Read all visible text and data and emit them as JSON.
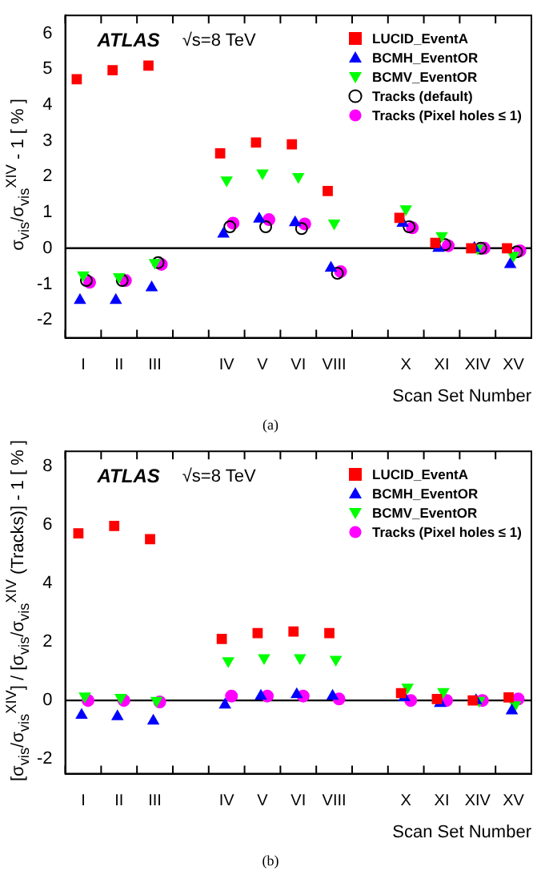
{
  "chart_data": [
    {
      "type": "scatter",
      "xlabel": "Scan Set Number",
      "ylabel": "σ$_{vis}$/σ$_{vis}$$^{XIV}$ - 1 [ % ]",
      "categories": [
        "I",
        "II",
        "III",
        null,
        "IV",
        "V",
        "VI",
        "VIII",
        null,
        "X",
        "XI",
        "XIV",
        "XV"
      ],
      "series": [
        {
          "name": "LUCID_EventA",
          "color": "#ff0000",
          "marker": "square",
          "values": [
            4.72,
            4.97,
            5.1,
            null,
            2.65,
            2.95,
            2.9,
            1.6,
            null,
            0.85,
            0.15,
            0,
            0
          ]
        },
        {
          "name": "BCMH_EventOR",
          "color": "#0000ff",
          "marker": "triangle",
          "values": [
            -1.45,
            -1.45,
            -1.1,
            null,
            0.4,
            0.82,
            0.72,
            -0.55,
            null,
            0.7,
            0,
            0,
            -0.45
          ]
        },
        {
          "name": "BCMV_EventOR",
          "color": "#00ff00",
          "marker": "triangle_down",
          "values": [
            -0.75,
            -0.8,
            -0.4,
            null,
            1.9,
            2.1,
            2.0,
            0.7,
            null,
            1.1,
            0.35,
            0,
            -0.2
          ]
        },
        {
          "name": "Tracks (default)",
          "color": "#000000",
          "marker": "circle_open",
          "values": [
            -0.9,
            -0.9,
            -0.4,
            null,
            0.6,
            0.6,
            0.55,
            -0.7,
            null,
            0.6,
            0.1,
            0,
            -0.1
          ]
        },
        {
          "name": "Tracks (Pixel holes ≤ 1)",
          "color": "#ff00ff",
          "marker": "circle",
          "values": [
            -0.95,
            -0.9,
            -0.45,
            null,
            0.7,
            0.8,
            0.68,
            -0.65,
            null,
            0.57,
            0.07,
            0,
            -0.07
          ]
        }
      ],
      "ylim": [
        -2.5,
        6.5
      ],
      "yticks": [
        -2,
        -1,
        0,
        1,
        2,
        3,
        4,
        5,
        6
      ],
      "grid": false,
      "legend": "top right",
      "ref_lines": [
        {
          "axis": "y",
          "value": 0,
          "color": "#000000"
        }
      ],
      "annotations": [
        "ATLAS",
        "√s=8 TeV",
        "(a)"
      ]
    },
    {
      "type": "scatter",
      "xlabel": "Scan Set Number",
      "ylabel": "[σ$_{vis}$/σ$_{vis}$$^{XIV}$] / [σ$_{vis}$/σ$_{vis}$$^{XIV}$ (Tracks)] - 1 [ % ]",
      "categories": [
        "I",
        "II",
        "III",
        null,
        "IV",
        "V",
        "VI",
        "VIII",
        null,
        "X",
        "XI",
        "XIV",
        "XV"
      ],
      "series": [
        {
          "name": "LUCID_EventA",
          "color": "#ff0000",
          "marker": "square",
          "values": [
            5.7,
            5.95,
            5.5,
            null,
            2.1,
            2.3,
            2.35,
            2.3,
            null,
            0.25,
            0.05,
            0,
            0.1
          ]
        },
        {
          "name": "BCMH_EventOR",
          "color": "#0000ff",
          "marker": "triangle",
          "values": [
            -0.5,
            -0.55,
            -0.7,
            null,
            -0.15,
            0.15,
            0.2,
            0.15,
            null,
            0.1,
            -0.1,
            0,
            -0.35
          ]
        },
        {
          "name": "BCMV_EventOR",
          "color": "#00ff00",
          "marker": "triangle_down",
          "values": [
            0.15,
            0.1,
            0.0,
            null,
            1.35,
            1.45,
            1.45,
            1.4,
            null,
            0.45,
            0.3,
            0,
            -0.15
          ]
        },
        {
          "name": "Tracks (Pixel holes ≤ 1)",
          "color": "#ff00ff",
          "marker": "circle",
          "values": [
            0,
            0,
            -0.05,
            null,
            0.15,
            0.15,
            0.15,
            0.05,
            null,
            0,
            0,
            0,
            0.05
          ]
        }
      ],
      "ylim": [
        -2.5,
        8.5
      ],
      "yticks": [
        -2,
        0,
        2,
        4,
        6,
        8
      ],
      "grid": false,
      "legend": "top right",
      "ref_lines": [
        {
          "axis": "y",
          "value": 0,
          "color": "#000000"
        }
      ],
      "annotations": [
        "ATLAS",
        "√s=8 TeV",
        "(b)"
      ]
    }
  ]
}
